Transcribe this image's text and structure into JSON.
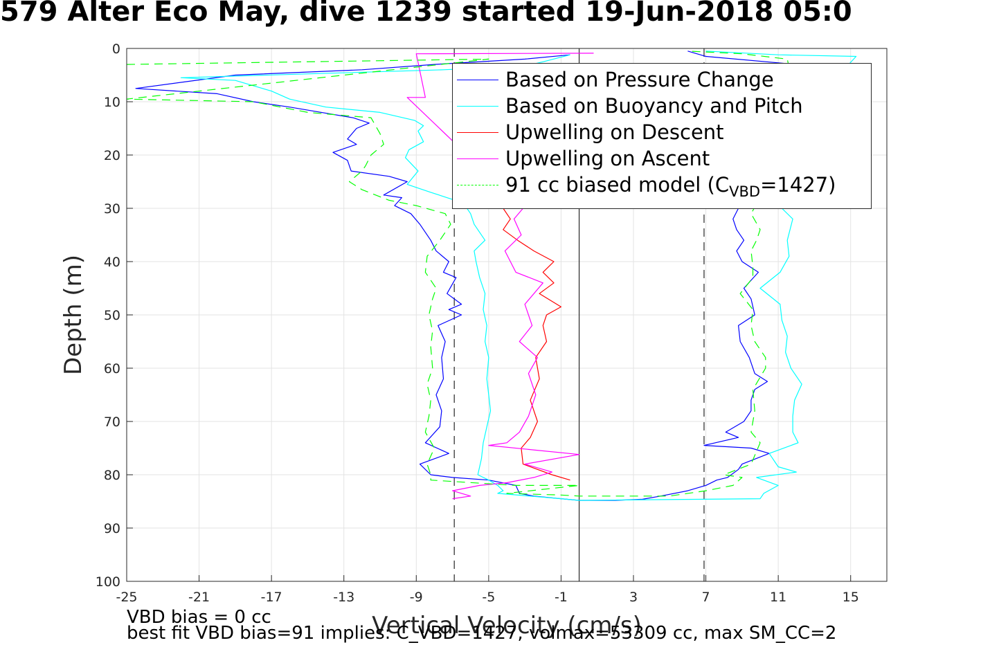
{
  "title": "579 Alter Eco May, dive 1239 started 19-Jun-2018 05:0",
  "footer": {
    "line1": "VBD bias = 0 cc",
    "line2": "best fit VBD bias=91 implies: C_VBD=1427, volmax=53309 cc, max SM_CC=2"
  },
  "legend": {
    "pressure": "Based on Pressure Change",
    "buoyancy": "Based on Buoyancy and Pitch",
    "up_descent": "Upwelling on Descent",
    "up_ascent": "Upwelling on Ascent",
    "model_prefix": "91 cc biased model (C",
    "model_sub": "VBD",
    "model_suffix": "=1427)"
  },
  "chart_data": {
    "type": "line",
    "xlabel": "Vertical Velocity (cm/s)",
    "ylabel": "Depth (m)",
    "xlim": [
      -25,
      17
    ],
    "ylim": [
      0,
      100
    ],
    "y_reversed": true,
    "xticks": [
      -25,
      -21,
      -17,
      -13,
      -9,
      -5,
      -1,
      3,
      7,
      11,
      15
    ],
    "yticks": [
      0,
      10,
      20,
      30,
      40,
      50,
      60,
      70,
      80,
      90,
      100
    ],
    "grid": true,
    "legend_position": "top-right",
    "reference_lines": [
      {
        "x": -6.9,
        "style": "dashed",
        "color": "#333333"
      },
      {
        "x": 0,
        "style": "solid",
        "color": "#333333"
      },
      {
        "x": 6.9,
        "style": "dashed",
        "color": "#333333"
      }
    ],
    "series": [
      {
        "name": "Based on Pressure Change",
        "color": "#0000ff",
        "dash": false,
        "points": [
          [
            -0.5,
            1.2
          ],
          [
            -3,
            2
          ],
          [
            -8,
            3
          ],
          [
            -12,
            4
          ],
          [
            -19,
            5
          ],
          [
            -24.5,
            7.5
          ],
          [
            -20,
            8.5
          ],
          [
            -18,
            10
          ],
          [
            -16,
            11
          ],
          [
            -12.5,
            13
          ],
          [
            -11.6,
            14
          ],
          [
            -12.3,
            15
          ],
          [
            -12.8,
            17
          ],
          [
            -12.3,
            18
          ],
          [
            -13.6,
            19.5
          ],
          [
            -12.8,
            21
          ],
          [
            -12.6,
            23
          ],
          [
            -10.5,
            24
          ],
          [
            -9.5,
            25
          ],
          [
            -10.8,
            27.5
          ],
          [
            -9.8,
            28
          ],
          [
            -10.2,
            29.5
          ],
          [
            -9.3,
            31
          ],
          [
            -8.8,
            33
          ],
          [
            -8.2,
            36
          ],
          [
            -7.9,
            38
          ],
          [
            -7.2,
            40
          ],
          [
            -7.5,
            42
          ],
          [
            -6.8,
            43
          ],
          [
            -7.3,
            46
          ],
          [
            -6.5,
            48
          ],
          [
            -7.2,
            49
          ],
          [
            -6.5,
            50
          ],
          [
            -7.8,
            52
          ],
          [
            -7.4,
            55
          ],
          [
            -7.6,
            58
          ],
          [
            -7.5,
            62
          ],
          [
            -7.9,
            65
          ],
          [
            -7.6,
            68
          ],
          [
            -7.7,
            71
          ],
          [
            -8.5,
            74
          ],
          [
            -7.2,
            76
          ],
          [
            -8.8,
            78
          ],
          [
            -8.2,
            80
          ],
          [
            -7,
            80.5
          ],
          [
            -5,
            81
          ],
          [
            -3.5,
            82
          ],
          [
            -3.3,
            83.5
          ],
          [
            -2.5,
            84
          ],
          [
            -1,
            84.5
          ],
          [
            0,
            84.8
          ],
          [
            2,
            84.8
          ],
          [
            3.5,
            84.6
          ],
          [
            4.5,
            84
          ],
          [
            6,
            83
          ],
          [
            7,
            82
          ],
          [
            7.6,
            81
          ],
          [
            8.2,
            80.5
          ],
          [
            8.8,
            79
          ],
          [
            9,
            78
          ],
          [
            10.5,
            76
          ],
          [
            9.5,
            75
          ],
          [
            6.9,
            74.5
          ],
          [
            8.8,
            73
          ],
          [
            8.1,
            72
          ],
          [
            9.1,
            70
          ],
          [
            9.5,
            68
          ],
          [
            9.5,
            66
          ],
          [
            9.7,
            64
          ],
          [
            10.4,
            62.5
          ],
          [
            9.7,
            61
          ],
          [
            9.4,
            58
          ],
          [
            8.9,
            55
          ],
          [
            8.8,
            52
          ],
          [
            9.7,
            50
          ],
          [
            9.5,
            47
          ],
          [
            9.1,
            45
          ],
          [
            9.9,
            42
          ],
          [
            9,
            40
          ],
          [
            8.7,
            38
          ],
          [
            9.1,
            36
          ],
          [
            8.7,
            34
          ],
          [
            8.5,
            32
          ],
          [
            8.8,
            30
          ],
          [
            10.5,
            20
          ],
          [
            12,
            15
          ],
          [
            14,
            8
          ],
          [
            12,
            3
          ],
          [
            7,
            1.5
          ],
          [
            6,
            0.5
          ]
        ]
      },
      {
        "name": "Based on Buoyancy and Pitch",
        "color": "#00ffff",
        "dash": false,
        "points": [
          [
            -0.5,
            1.2
          ],
          [
            -2,
            2.5
          ],
          [
            -3,
            3.3
          ],
          [
            -7.5,
            4
          ],
          [
            -22,
            5.5
          ],
          [
            -19,
            6
          ],
          [
            -17,
            8
          ],
          [
            -16,
            9.5
          ],
          [
            -14,
            11
          ],
          [
            -11,
            12
          ],
          [
            -9.1,
            13.5
          ],
          [
            -8.6,
            14.5
          ],
          [
            -8.9,
            15.5
          ],
          [
            -8.6,
            17.5
          ],
          [
            -9.4,
            19
          ],
          [
            -9.6,
            20.5
          ],
          [
            -8.9,
            23
          ],
          [
            -9.5,
            25.5
          ],
          [
            -8.2,
            27
          ],
          [
            -6.4,
            29
          ],
          [
            -6.0,
            31
          ],
          [
            -5.8,
            33
          ],
          [
            -5.2,
            36
          ],
          [
            -5.8,
            38
          ],
          [
            -5.7,
            40
          ],
          [
            -5.5,
            43
          ],
          [
            -5.2,
            46
          ],
          [
            -5.3,
            49
          ],
          [
            -5.1,
            52
          ],
          [
            -5.2,
            55
          ],
          [
            -5.0,
            58
          ],
          [
            -5.1,
            62
          ],
          [
            -5.0,
            65
          ],
          [
            -4.9,
            68
          ],
          [
            -5.1,
            71
          ],
          [
            -5.3,
            74
          ],
          [
            -5.4,
            77
          ],
          [
            -5.6,
            80
          ],
          [
            -5.0,
            81
          ],
          [
            -4.5,
            82
          ],
          [
            -4.2,
            83
          ],
          [
            -4.5,
            83.5
          ],
          [
            -1,
            84.5
          ],
          [
            0,
            84.8
          ],
          [
            10,
            84.5
          ],
          [
            10.2,
            83.5
          ],
          [
            11,
            82
          ],
          [
            9.8,
            80.5
          ],
          [
            12,
            79.5
          ],
          [
            11,
            78.5
          ],
          [
            10.5,
            76
          ],
          [
            12.1,
            74
          ],
          [
            11.8,
            72
          ],
          [
            11.8,
            69
          ],
          [
            11.9,
            66
          ],
          [
            12.3,
            63
          ],
          [
            11.7,
            60
          ],
          [
            11.4,
            57
          ],
          [
            11.5,
            54
          ],
          [
            11.2,
            51
          ],
          [
            11.1,
            48
          ],
          [
            10.0,
            45
          ],
          [
            11.1,
            42
          ],
          [
            11.6,
            39
          ],
          [
            11.5,
            36
          ],
          [
            11.8,
            32
          ],
          [
            11.2,
            30
          ],
          [
            12,
            20
          ],
          [
            13,
            10
          ],
          [
            15.3,
            1.5
          ],
          [
            11,
            1.2
          ],
          [
            7,
            0.5
          ]
        ]
      },
      {
        "name": "Upwelling on Descent",
        "color": "#ff0000",
        "dash": false,
        "points": [
          [
            -4.2,
            30
          ],
          [
            -3.8,
            32
          ],
          [
            -4.2,
            34
          ],
          [
            -3.4,
            36
          ],
          [
            -2.5,
            38
          ],
          [
            -1.4,
            40
          ],
          [
            -2.0,
            42
          ],
          [
            -1.4,
            44
          ],
          [
            -2.2,
            46
          ],
          [
            -1.0,
            48.5
          ],
          [
            -1.8,
            50
          ],
          [
            -2.0,
            52
          ],
          [
            -1.8,
            55
          ],
          [
            -2.4,
            58
          ],
          [
            -2.2,
            62
          ],
          [
            -2.7,
            66
          ],
          [
            -2.3,
            70
          ],
          [
            -2.7,
            73
          ],
          [
            -3.2,
            75
          ],
          [
            -3.1,
            78
          ],
          [
            -1.5,
            80
          ],
          [
            -0.5,
            81
          ]
        ]
      },
      {
        "name": "Upwelling on Ascent",
        "color": "#ff00ff",
        "dash": false,
        "points": [
          [
            -7,
            84.5
          ],
          [
            -6.0,
            84
          ],
          [
            -7.0,
            83
          ],
          [
            -5.5,
            82
          ],
          [
            -4.0,
            81.5
          ],
          [
            -2.5,
            80.5
          ],
          [
            -1.5,
            79.5
          ],
          [
            -3.0,
            78
          ],
          [
            0,
            76.2
          ],
          [
            -5.0,
            74.5
          ],
          [
            -4.0,
            74
          ],
          [
            -3.3,
            72
          ],
          [
            -2.8,
            69
          ],
          [
            -2.4,
            65
          ],
          [
            -2.8,
            61
          ],
          [
            -2.3,
            58
          ],
          [
            -3.3,
            55
          ],
          [
            -2.6,
            52
          ],
          [
            -3.0,
            48
          ],
          [
            -2.0,
            44
          ],
          [
            -3.5,
            42
          ],
          [
            -4.1,
            38
          ],
          [
            -3.2,
            35
          ],
          [
            -3.6,
            32
          ],
          [
            -3.1,
            30
          ],
          [
            -9.5,
            9.2
          ],
          [
            -8.5,
            9.2
          ],
          [
            -9,
            1
          ],
          [
            0.8,
            0.9
          ]
        ]
      },
      {
        "name": "91 cc biased model (C_VBD=1427)",
        "color": "#00ff00",
        "dash": true,
        "points": [
          [
            -25,
            3
          ],
          [
            -5,
            2
          ],
          [
            -25,
            9.5
          ],
          [
            -18,
            10
          ],
          [
            -15,
            12
          ],
          [
            -11.5,
            13
          ],
          [
            -11,
            16
          ],
          [
            -10.8,
            18
          ],
          [
            -11.5,
            20
          ],
          [
            -11.8,
            22
          ],
          [
            -12,
            23
          ],
          [
            -12.7,
            25
          ],
          [
            -12,
            26.5
          ],
          [
            -10.5,
            28.5
          ],
          [
            -9,
            29.5
          ],
          [
            -7.4,
            31
          ],
          [
            -7.1,
            33
          ],
          [
            -7.7,
            36
          ],
          [
            -8.4,
            39
          ],
          [
            -8.5,
            42
          ],
          [
            -7.9,
            45
          ],
          [
            -8.1,
            47
          ],
          [
            -8.3,
            50
          ],
          [
            -8.1,
            53
          ],
          [
            -8.2,
            56
          ],
          [
            -8.1,
            60
          ],
          [
            -8.4,
            63
          ],
          [
            -8.2,
            66
          ],
          [
            -8.3,
            69
          ],
          [
            -8.5,
            72
          ],
          [
            -8.0,
            75
          ],
          [
            -8.4,
            78
          ],
          [
            -8.2,
            80
          ],
          [
            -8.2,
            81
          ],
          [
            -3.5,
            82
          ],
          [
            0,
            82
          ],
          [
            -4,
            83.5
          ],
          [
            -1,
            83.8
          ],
          [
            0,
            84
          ],
          [
            5,
            84
          ],
          [
            7,
            83
          ],
          [
            8.5,
            82
          ],
          [
            9,
            80.5
          ],
          [
            8,
            80
          ],
          [
            9.5,
            78
          ],
          [
            10,
            74
          ],
          [
            9.5,
            72
          ],
          [
            9.7,
            68
          ],
          [
            9.6,
            64
          ],
          [
            10.3,
            60
          ],
          [
            10.3,
            58
          ],
          [
            9.7,
            55
          ],
          [
            9.5,
            52
          ],
          [
            9.6,
            49
          ],
          [
            8.9,
            46
          ],
          [
            9.6,
            43
          ],
          [
            9.6,
            41
          ],
          [
            9.5,
            38
          ],
          [
            9.8,
            36
          ],
          [
            10,
            34
          ],
          [
            9.5,
            31
          ],
          [
            10,
            28
          ],
          [
            11,
            20
          ],
          [
            12,
            10
          ],
          [
            11.5,
            2
          ],
          [
            9,
            1
          ],
          [
            6,
            0.5
          ]
        ]
      }
    ]
  }
}
